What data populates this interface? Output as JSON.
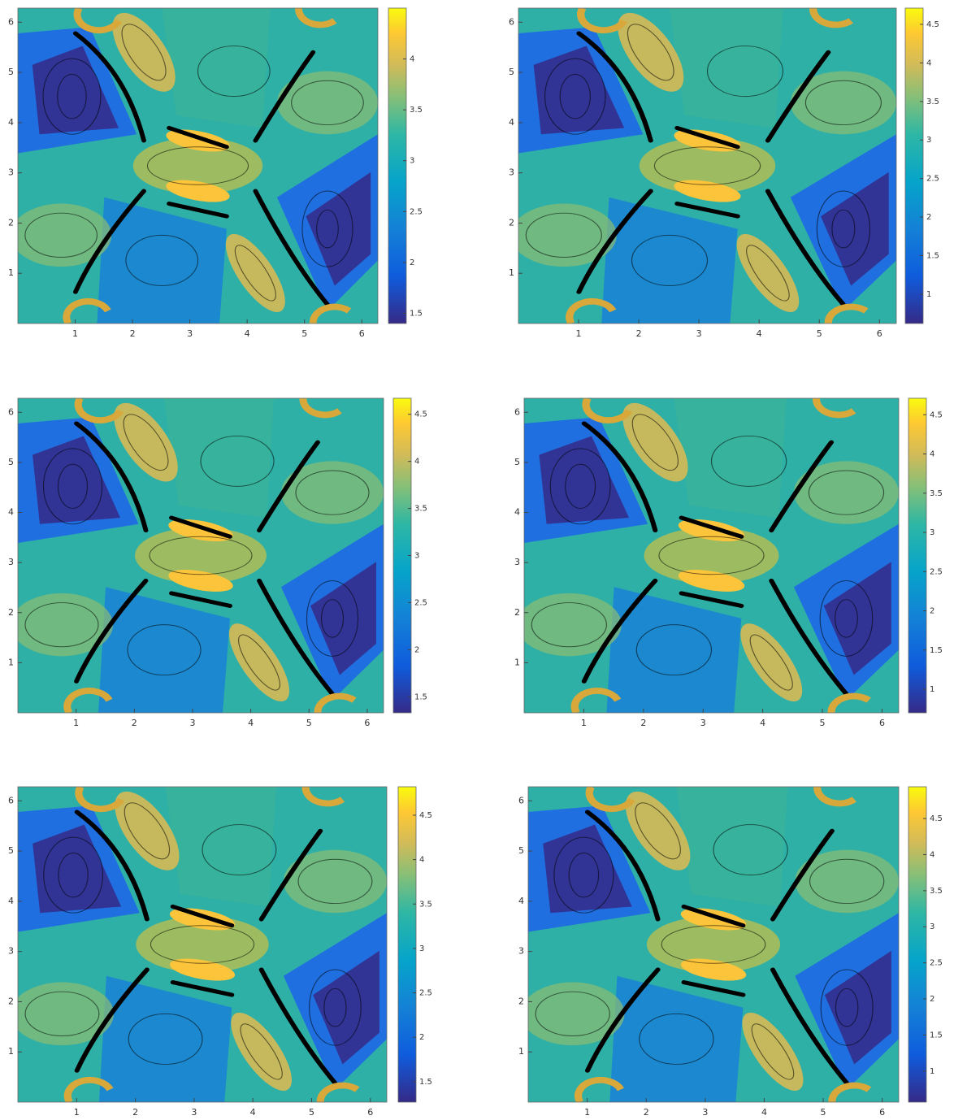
{
  "chart_data": [
    {
      "type": "contour",
      "xlim": [
        0,
        6.28
      ],
      "ylim": [
        0,
        6.28
      ],
      "xticks": [
        1,
        2,
        3,
        4,
        5,
        6
      ],
      "yticks": [
        1,
        2,
        3,
        4,
        5,
        6
      ],
      "clim": [
        1.4,
        4.5
      ],
      "cticks": [
        1.5,
        2,
        2.5,
        3,
        3.5,
        4
      ]
    },
    {
      "type": "contour",
      "xlim": [
        0,
        6.28
      ],
      "ylim": [
        0,
        6.28
      ],
      "xticks": [
        1,
        2,
        3,
        4,
        5,
        6
      ],
      "yticks": [
        1,
        2,
        3,
        4,
        5,
        6
      ],
      "clim": [
        0.62,
        4.71
      ],
      "cticks": [
        1,
        1.5,
        2,
        2.5,
        3,
        3.5,
        4,
        4.5
      ]
    },
    {
      "type": "contour",
      "xlim": [
        0,
        6.28
      ],
      "ylim": [
        0,
        6.28
      ],
      "xticks": [
        1,
        2,
        3,
        4,
        5,
        6
      ],
      "yticks": [
        1,
        2,
        3,
        4,
        5,
        6
      ],
      "clim": [
        1.33,
        4.67
      ],
      "cticks": [
        1.5,
        2,
        2.5,
        3,
        3.5,
        4,
        4.5
      ]
    },
    {
      "type": "contour",
      "xlim": [
        0,
        6.28
      ],
      "ylim": [
        0,
        6.28
      ],
      "xticks": [
        1,
        2,
        3,
        4,
        5,
        6
      ],
      "yticks": [
        1,
        2,
        3,
        4,
        5,
        6
      ],
      "clim": [
        0.7,
        4.71
      ],
      "cticks": [
        1,
        1.5,
        2,
        2.5,
        3,
        3.5,
        4,
        4.5
      ]
    },
    {
      "type": "contour",
      "xlim": [
        0,
        6.28
      ],
      "ylim": [
        0,
        6.28
      ],
      "xticks": [
        1,
        2,
        3,
        4,
        5,
        6
      ],
      "yticks": [
        1,
        2,
        3,
        4,
        5,
        6
      ],
      "clim": [
        1.27,
        4.82
      ],
      "cticks": [
        1.5,
        2,
        2.5,
        3,
        3.5,
        4,
        4.5
      ]
    },
    {
      "type": "contour",
      "xlim": [
        0,
        6.28
      ],
      "ylim": [
        0,
        6.28
      ],
      "xticks": [
        1,
        2,
        3,
        4,
        5,
        6
      ],
      "yticks": [
        1,
        2,
        3,
        4,
        5,
        6
      ],
      "clim": [
        0.57,
        4.94
      ],
      "cticks": [
        1,
        1.5,
        2,
        2.5,
        3,
        3.5,
        4,
        4.5
      ]
    }
  ]
}
